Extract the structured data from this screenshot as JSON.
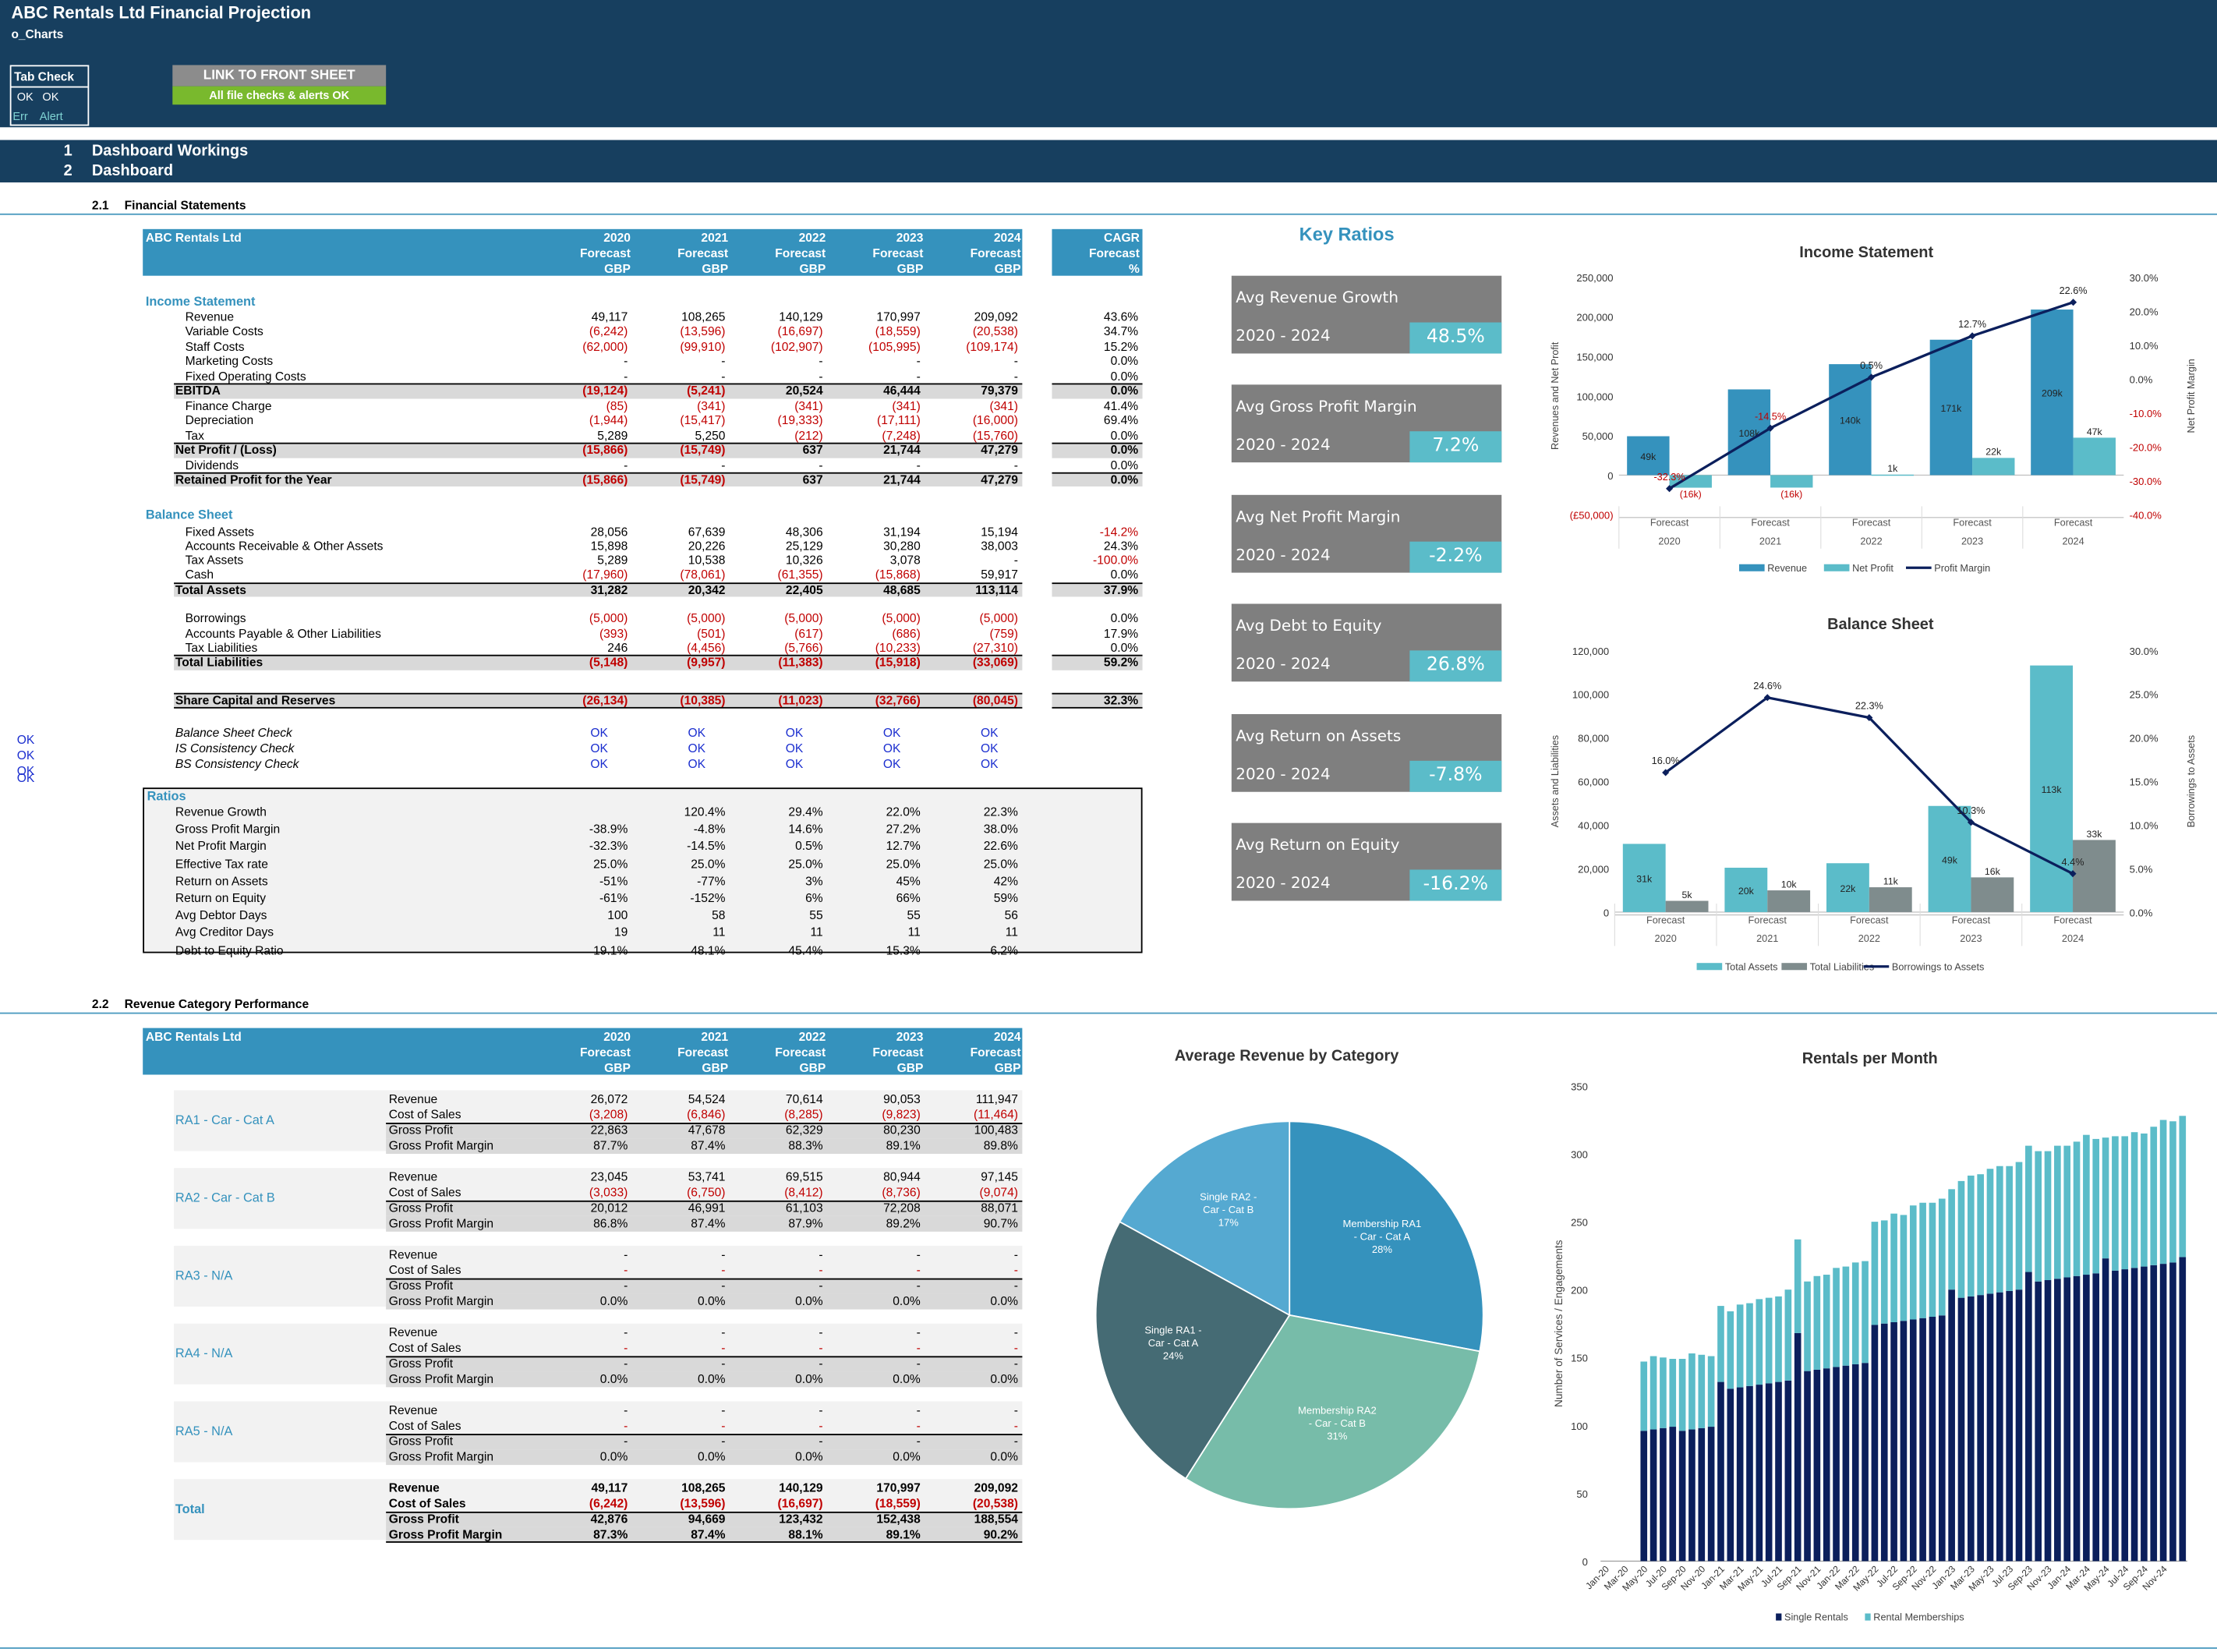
{
  "header": {
    "title": "ABC  Rentals Ltd Financial Projection",
    "sheet": "o_Charts"
  },
  "tab_check": {
    "title": "Tab Check",
    "ok1": "OK",
    "ok2": "OK",
    "err": "Err",
    "alert": "Alert"
  },
  "link_button": "LINK TO FRONT SHEET",
  "checks_ok": "All file checks & alerts OK",
  "sections": [
    {
      "num": "1",
      "label": "Dashboard Workings"
    },
    {
      "num": "2",
      "label": "Dashboard"
    }
  ],
  "fs": {
    "heading_num": "2.1",
    "heading": "Financial Statements",
    "company": "ABC  Rentals Ltd",
    "years": [
      "2020",
      "2021",
      "2022",
      "2023",
      "2024"
    ],
    "forecast": "Forecast",
    "gbp": "GBP",
    "cagr": "CAGR",
    "cagr_unit": "%",
    "is_title": "Income Statement",
    "bs_title": "Balance Sheet",
    "ratios_title": "Ratios"
  },
  "is_rows": [
    {
      "label": "Revenue",
      "v": [
        "49,117",
        "108,265",
        "140,129",
        "170,997",
        "209,092"
      ],
      "c": "43.6%",
      "k": "n"
    },
    {
      "label": "Variable Costs",
      "v": [
        "(6,242)",
        "(13,596)",
        "(16,697)",
        "(18,559)",
        "(20,538)"
      ],
      "c": "34.7%",
      "k": "r"
    },
    {
      "label": "Staff Costs",
      "v": [
        "(62,000)",
        "(99,910)",
        "(102,907)",
        "(105,995)",
        "(109,174)"
      ],
      "c": "15.2%",
      "k": "r"
    },
    {
      "label": "Marketing Costs",
      "v": [
        "-",
        "-",
        "-",
        "-",
        "-"
      ],
      "c": "0.0%",
      "k": "n"
    },
    {
      "label": "Fixed Operating Costs",
      "v": [
        "-",
        "-",
        "-",
        "-",
        "-"
      ],
      "c": "0.0%",
      "k": "n"
    },
    {
      "label": "EBITDA",
      "v": [
        "(19,124)",
        "(5,241)",
        "20,524",
        "46,444",
        "79,379"
      ],
      "c": "0.0%",
      "k": "t"
    },
    {
      "label": "Finance Charge",
      "v": [
        "(85)",
        "(341)",
        "(341)",
        "(341)",
        "(341)"
      ],
      "c": "41.4%",
      "k": "r"
    },
    {
      "label": "Depreciation",
      "v": [
        "(1,944)",
        "(15,417)",
        "(19,333)",
        "(17,111)",
        "(16,000)"
      ],
      "c": "69.4%",
      "k": "r"
    },
    {
      "label": "Tax",
      "v": [
        "5,289",
        "5,250",
        "(212)",
        "(7,248)",
        "(15,760)"
      ],
      "c": "0.0%",
      "k": "m"
    },
    {
      "label": "Net Profit / (Loss)",
      "v": [
        "(15,866)",
        "(15,749)",
        "637",
        "21,744",
        "47,279"
      ],
      "c": "0.0%",
      "k": "t"
    },
    {
      "label": "Dividends",
      "v": [
        "-",
        "-",
        "-",
        "-",
        "-"
      ],
      "c": "0.0%",
      "k": "n"
    },
    {
      "label": "Retained Profit for the Year",
      "v": [
        "(15,866)",
        "(15,749)",
        "637",
        "21,744",
        "47,279"
      ],
      "c": "0.0%",
      "k": "t"
    }
  ],
  "bs_rows": [
    {
      "label": "Fixed Assets",
      "v": [
        "28,056",
        "67,639",
        "48,306",
        "31,194",
        "15,194"
      ],
      "c": "-14.2%",
      "k": "n"
    },
    {
      "label": "Accounts Receivable & Other Assets",
      "v": [
        "15,898",
        "20,226",
        "25,129",
        "30,280",
        "38,003"
      ],
      "c": "24.3%",
      "k": "n"
    },
    {
      "label": "Tax Assets",
      "v": [
        "5,289",
        "10,538",
        "10,326",
        "3,078",
        "-"
      ],
      "c": "-100.0%",
      "k": "n"
    },
    {
      "label": "Cash",
      "v": [
        "(17,960)",
        "(78,061)",
        "(61,355)",
        "(15,868)",
        "59,917"
      ],
      "c": "0.0%",
      "k": "r"
    },
    {
      "label": "Total Assets",
      "v": [
        "31,282",
        "20,342",
        "22,405",
        "48,685",
        "113,114"
      ],
      "c": "37.9%",
      "k": "t"
    },
    {
      "label": "",
      "v": [
        "",
        "",
        "",
        "",
        ""
      ],
      "c": "",
      "k": "n"
    },
    {
      "label": "Borrowings",
      "v": [
        "(5,000)",
        "(5,000)",
        "(5,000)",
        "(5,000)",
        "(5,000)"
      ],
      "c": "0.0%",
      "k": "r"
    },
    {
      "label": "Accounts Payable & Other Liabilities",
      "v": [
        "(393)",
        "(501)",
        "(617)",
        "(686)",
        "(759)"
      ],
      "c": "17.9%",
      "k": "r"
    },
    {
      "label": "Tax Liabilities",
      "v": [
        "246",
        "(4,456)",
        "(5,766)",
        "(10,233)",
        "(27,310)"
      ],
      "c": "0.0%",
      "k": "r"
    },
    {
      "label": "Total Liabilities",
      "v": [
        "(5,148)",
        "(9,957)",
        "(11,383)",
        "(15,918)",
        "(33,069)"
      ],
      "c": "59.2%",
      "k": "t"
    }
  ],
  "share_cap": {
    "label": "Share Capital and Reserves",
    "v": [
      "(26,134)",
      "(10,385)",
      "(11,023)",
      "(32,766)",
      "(80,045)"
    ],
    "c": "32.3%"
  },
  "checks": [
    {
      "label": "Balance Sheet Check",
      "side": ""
    },
    {
      "label": "IS Consistency Check",
      "side": "OK"
    },
    {
      "label": "BS Consistency Check",
      "side": "OK"
    }
  ],
  "check_value": "OK",
  "extra_ok": "OK",
  "ratio_rows": [
    {
      "label": "Revenue Growth",
      "v": [
        "",
        "120.4%",
        "29.4%",
        "22.0%",
        "22.3%"
      ]
    },
    {
      "label": "Gross Profit Margin",
      "v": [
        "-38.9%",
        "-4.8%",
        "14.6%",
        "27.2%",
        "38.0%"
      ]
    },
    {
      "label": "Net Profit Margin",
      "v": [
        "-32.3%",
        "-14.5%",
        "0.5%",
        "12.7%",
        "22.6%"
      ]
    },
    {
      "label": "Effective Tax rate",
      "v": [
        "25.0%",
        "25.0%",
        "25.0%",
        "25.0%",
        "25.0%"
      ]
    },
    {
      "label": "Return on Assets",
      "v": [
        "-51%",
        "-77%",
        "3%",
        "45%",
        "42%"
      ]
    },
    {
      "label": "Return on Equity",
      "v": [
        "-61%",
        "-152%",
        "6%",
        "66%",
        "59%"
      ]
    },
    {
      "label": "Avg Debtor Days",
      "v": [
        "100",
        "58",
        "55",
        "55",
        "56"
      ]
    },
    {
      "label": "Avg Creditor Days",
      "v": [
        "19",
        "11",
        "11",
        "11",
        "11"
      ]
    },
    {
      "label": "Debt to Equity Ratio",
      "v": [
        "19.1%",
        "48.1%",
        "45.4%",
        "15.3%",
        "6.2%"
      ]
    }
  ],
  "key_ratios": {
    "title": "Key Ratios",
    "period": "2020 - 2024",
    "cards": [
      {
        "label": "Avg Revenue Growth",
        "value": "48.5%"
      },
      {
        "label": "Avg Gross Profit Margin",
        "value": "7.2%"
      },
      {
        "label": "Avg Net Profit Margin",
        "value": "-2.2%"
      },
      {
        "label": "Avg Debt to Equity",
        "value": "26.8%"
      },
      {
        "label": "Avg Return on Assets",
        "value": "-7.8%"
      },
      {
        "label": "Avg Return on Equity",
        "value": "-16.2%"
      }
    ]
  },
  "rc": {
    "heading_num": "2.2",
    "heading": "Revenue Category Performance",
    "company": "ABC  Rentals Ltd",
    "line_labels": [
      "Revenue",
      "Cost of Sales",
      "Gross Profit",
      "Gross Profit Margin"
    ],
    "groups": [
      {
        "name": "RA1 - Car - Cat A",
        "rows": [
          [
            "26,072",
            "54,524",
            "70,614",
            "90,053",
            "111,947"
          ],
          [
            "(3,208)",
            "(6,846)",
            "(8,285)",
            "(9,823)",
            "(11,464)"
          ],
          [
            "22,863",
            "47,678",
            "62,329",
            "80,230",
            "100,483"
          ],
          [
            "87.7%",
            "87.4%",
            "88.3%",
            "89.1%",
            "89.8%"
          ]
        ]
      },
      {
        "name": "RA2 - Car - Cat B",
        "rows": [
          [
            "23,045",
            "53,741",
            "69,515",
            "80,944",
            "97,145"
          ],
          [
            "(3,033)",
            "(6,750)",
            "(8,412)",
            "(8,736)",
            "(9,074)"
          ],
          [
            "20,012",
            "46,991",
            "61,103",
            "72,208",
            "88,071"
          ],
          [
            "86.8%",
            "87.4%",
            "87.9%",
            "89.2%",
            "90.7%"
          ]
        ]
      },
      {
        "name": "RA3 - N/A",
        "rows": [
          [
            "-",
            "-",
            "-",
            "-",
            "-"
          ],
          [
            "-",
            "-",
            "-",
            "-",
            "-"
          ],
          [
            "-",
            "-",
            "-",
            "-",
            "-"
          ],
          [
            "0.0%",
            "0.0%",
            "0.0%",
            "0.0%",
            "0.0%"
          ]
        ]
      },
      {
        "name": "RA4 - N/A",
        "rows": [
          [
            "-",
            "-",
            "-",
            "-",
            "-"
          ],
          [
            "-",
            "-",
            "-",
            "-",
            "-"
          ],
          [
            "-",
            "-",
            "-",
            "-",
            "-"
          ],
          [
            "0.0%",
            "0.0%",
            "0.0%",
            "0.0%",
            "0.0%"
          ]
        ]
      },
      {
        "name": "RA5 - N/A",
        "rows": [
          [
            "-",
            "-",
            "-",
            "-",
            "-"
          ],
          [
            "-",
            "-",
            "-",
            "-",
            "-"
          ],
          [
            "-",
            "-",
            "-",
            "-",
            "-"
          ],
          [
            "0.0%",
            "0.0%",
            "0.0%",
            "0.0%",
            "0.0%"
          ]
        ]
      },
      {
        "name": "Total",
        "rows": [
          [
            "49,117",
            "108,265",
            "140,129",
            "170,997",
            "209,092"
          ],
          [
            "(6,242)",
            "(13,596)",
            "(16,697)",
            "(18,559)",
            "(20,538)"
          ],
          [
            "42,876",
            "94,669",
            "123,432",
            "152,438",
            "188,554"
          ],
          [
            "87.3%",
            "87.4%",
            "88.1%",
            "89.1%",
            "90.2%"
          ]
        ]
      }
    ]
  },
  "colors": {
    "navy": "#173f5f",
    "blue": "#3592bd",
    "teal": "#5bbcc9",
    "gray": "#7f7f7f",
    "green": "#79b92d",
    "dark": "#0b1f5c"
  },
  "chart_data": [
    {
      "type": "bar",
      "title": "Income Statement",
      "categories": [
        "2020",
        "2021",
        "2022",
        "2023",
        "2024"
      ],
      "cat_sub": "Forecast",
      "series": [
        {
          "name": "Revenue",
          "values": [
            49117,
            108265,
            140129,
            170997,
            209092
          ],
          "labels": [
            "49k",
            "108k",
            "140k",
            "171k",
            "209k"
          ]
        },
        {
          "name": "Net Profit",
          "values": [
            -15866,
            -15749,
            637,
            21744,
            47279
          ],
          "labels": [
            "(16k)",
            "(16k)",
            "1k",
            "22k",
            "47k"
          ]
        },
        {
          "name": "Profit Margin",
          "type": "line",
          "values": [
            -32.3,
            -14.5,
            0.5,
            12.7,
            22.6
          ],
          "labels": [
            "-32.3%",
            "-14.5%",
            "0.5%",
            "12.7%",
            "22.6%"
          ]
        }
      ],
      "ylabel": "Revenues  and Net Profit",
      "y2label": "Net Profit Margin",
      "ylim": [
        -50000,
        250000
      ],
      "y2lim": [
        -40,
        30
      ],
      "yticks": [
        "(£50,000)",
        "0",
        "50,000",
        "100,000",
        "150,000",
        "200,000",
        "250,000"
      ],
      "y2ticks": [
        "-40.0%",
        "-30.0%",
        "-20.0%",
        "-10.0%",
        "0.0%",
        "10.0%",
        "20.0%",
        "30.0%"
      ]
    },
    {
      "type": "bar",
      "title": "Balance Sheet",
      "categories": [
        "2020",
        "2021",
        "2022",
        "2023",
        "2024"
      ],
      "cat_sub": "Forecast",
      "series": [
        {
          "name": "Total Assets",
          "values": [
            31282,
            20342,
            22405,
            48685,
            113114
          ],
          "labels": [
            "31k",
            "20k",
            "22k",
            "49k",
            "113k"
          ]
        },
        {
          "name": "Total Liabilities",
          "values": [
            5148,
            9957,
            11383,
            15918,
            33069
          ],
          "labels": [
            "5k",
            "10k",
            "11k",
            "16k",
            "33k"
          ]
        },
        {
          "name": "Borrowings to Assets",
          "type": "line",
          "values": [
            16.0,
            24.6,
            22.3,
            10.3,
            4.4
          ],
          "labels": [
            "16.0%",
            "24.6%",
            "22.3%",
            "10.3%",
            "4.4%"
          ]
        }
      ],
      "ylabel": "Assets and Liabilities",
      "y2label": "Borrowings to Assets",
      "ylim": [
        0,
        120000
      ],
      "y2lim": [
        0,
        30
      ],
      "yticks": [
        "0",
        "20,000",
        "40,000",
        "60,000",
        "80,000",
        "100,000",
        "120,000"
      ],
      "y2ticks": [
        "0.0%",
        "5.0%",
        "10.0%",
        "15.0%",
        "20.0%",
        "25.0%",
        "30.0%"
      ]
    },
    {
      "type": "pie",
      "title": "Average Revenue by Category",
      "slices": [
        {
          "name": "Membership RA1 - Car - Cat A",
          "value": 28,
          "label": "28%"
        },
        {
          "name": "Membership RA2 - Car - Cat B",
          "value": 31,
          "label": "31%"
        },
        {
          "name": "Single RA1 - Car - Cat A",
          "value": 24,
          "label": "24%"
        },
        {
          "name": "Single RA2 - Car - Cat B",
          "value": 17,
          "label": "17%"
        }
      ]
    },
    {
      "type": "bar",
      "stacked": true,
      "title": "Rentals per Month",
      "ylabel": "Number of Services / Engagements",
      "ylim": [
        0,
        350
      ],
      "yticks": [
        "0",
        "50",
        "100",
        "150",
        "200",
        "250",
        "300",
        "350"
      ],
      "xtick_labels": [
        "Jan-20",
        "Mar-20",
        "May-20",
        "Jul-20",
        "Sep-20",
        "Nov-20",
        "Jan-21",
        "Mar-21",
        "May-21",
        "Jul-21",
        "Sep-21",
        "Nov-21",
        "Jan-22",
        "Mar-22",
        "May-22",
        "Jul-22",
        "Sep-22",
        "Nov-22",
        "Jan-23",
        "Mar-23",
        "May-23",
        "Jul-23",
        "Sep-23",
        "Nov-23",
        "Jan-24",
        "Mar-24",
        "May-24",
        "Jul-24",
        "Sep-24",
        "Nov-24"
      ],
      "series": [
        {
          "name": "Single Rentals",
          "values": [
            0,
            0,
            0,
            0,
            96,
            97,
            98,
            99,
            96,
            97,
            98,
            99,
            132,
            127,
            128,
            129,
            130,
            131,
            132,
            133,
            168,
            140,
            141,
            142,
            143,
            144,
            145,
            146,
            174,
            175,
            176,
            177,
            178,
            179,
            180,
            181,
            200,
            194,
            195,
            196,
            197,
            198,
            199,
            200,
            213,
            206,
            207,
            208,
            209,
            210,
            211,
            212,
            223,
            214,
            215,
            216,
            217,
            218,
            219,
            220,
            224
          ]
        },
        {
          "name": "Rental Memberships",
          "values": [
            0,
            0,
            0,
            0,
            51,
            54,
            52,
            50,
            53,
            56,
            54,
            52,
            56,
            57,
            61,
            61,
            63,
            63,
            63,
            67,
            69,
            66,
            69,
            69,
            73,
            73,
            75,
            75,
            76,
            76,
            80,
            78,
            84,
            85,
            84,
            86,
            74,
            86,
            89,
            89,
            92,
            93,
            92,
            94,
            93,
            96,
            95,
            98,
            97,
            99,
            103,
            99,
            89,
            99,
            98,
            100,
            98,
            102,
            106,
            104,
            104
          ]
        }
      ]
    }
  ]
}
